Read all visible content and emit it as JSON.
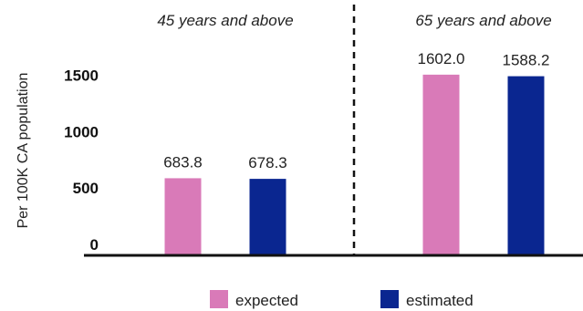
{
  "chart_data": {
    "type": "bar",
    "ylabel": "Per 100K CA population",
    "yticks": [
      0,
      500,
      1000,
      1500
    ],
    "ylim": [
      0,
      1900
    ],
    "categories": [
      "45 years and above",
      "65 years and above"
    ],
    "series": [
      {
        "name": "expected",
        "values": [
          683.8,
          1602.0
        ],
        "labels": [
          "683.8",
          "1602.0"
        ],
        "color": "#d97ab8"
      },
      {
        "name": "estimated",
        "values": [
          678.3,
          1588.2
        ],
        "labels": [
          "678.3",
          "1588.2"
        ],
        "color": "#0a2690"
      }
    ],
    "legend_position": "bottom",
    "group_divider": "dashed"
  }
}
